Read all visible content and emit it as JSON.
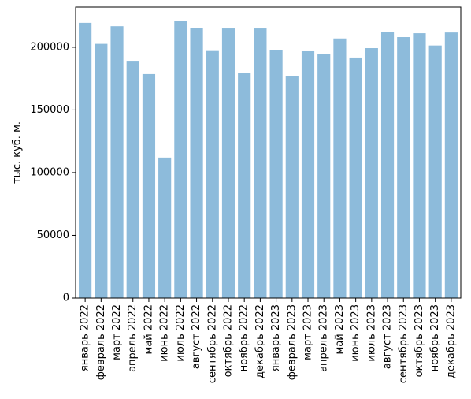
{
  "chart_data": {
    "type": "bar",
    "title": "",
    "xlabel": "",
    "ylabel": "тыс. куб. м.",
    "ylim": [
      0,
      232000
    ],
    "yticks": [
      0,
      50000,
      100000,
      150000,
      200000
    ],
    "grid": false,
    "bar_color": "#8dbbdb",
    "categories": [
      "январь 2022",
      "февраль 2022",
      "март 2022",
      "апрель 2022",
      "май 2022",
      "июнь 2022",
      "июль 2022",
      "август 2022",
      "сентябрь 2022",
      "октябрь 2022",
      "ноябрь 2022",
      "декабрь 2022",
      "январь 2023",
      "февраль 2023",
      "март 2023",
      "апрель 2023",
      "май 2023",
      "июнь 2023",
      "июль 2023",
      "август 2023",
      "сентябрь 2023",
      "октябрь 2023",
      "ноябрь 2023",
      "декабрь 2023"
    ],
    "values": [
      219500,
      202700,
      216800,
      189200,
      178600,
      112000,
      220800,
      215600,
      197000,
      215000,
      179800,
      215000,
      198000,
      176800,
      196800,
      194400,
      207000,
      191800,
      199300,
      212500,
      208100,
      211200,
      201400,
      211800
    ]
  }
}
